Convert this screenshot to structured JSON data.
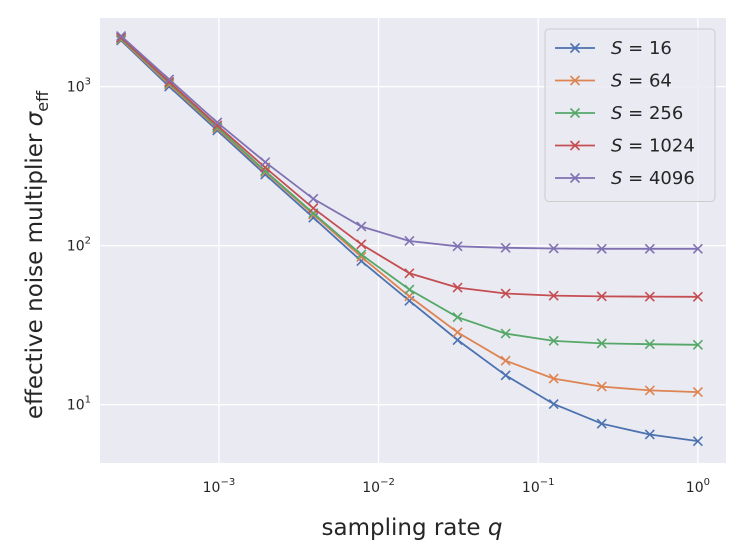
{
  "chart_data": {
    "type": "line",
    "x_scale": "log",
    "y_scale": "log",
    "xlim": [
      0.00018,
      1.5
    ],
    "ylim": [
      4.3,
      2700
    ],
    "xlabel": "sampling rate",
    "xlabel_var": "q",
    "ylabel": "effective noise multiplier",
    "ylabel_var": "σ",
    "ylabel_sub": "eff",
    "grid": true,
    "legend_position": "top-right",
    "x": [
      0.000244,
      0.000488,
      0.000977,
      0.00195,
      0.0039,
      0.0078,
      0.0156,
      0.03125,
      0.0625,
      0.125,
      0.25,
      0.5,
      1.0
    ],
    "x_ticks": [
      {
        "value": 0.001,
        "base": "10",
        "exp": "−3"
      },
      {
        "value": 0.01,
        "base": "10",
        "exp": "−2"
      },
      {
        "value": 0.1,
        "base": "10",
        "exp": "−1"
      },
      {
        "value": 1,
        "base": "10",
        "exp": "0"
      }
    ],
    "y_ticks": [
      {
        "value": 10,
        "base": "10",
        "exp": "1"
      },
      {
        "value": 100,
        "base": "10",
        "exp": "2"
      },
      {
        "value": 1000,
        "base": "10",
        "exp": "3"
      }
    ],
    "series": [
      {
        "name": "S = 16",
        "var": "S",
        "eq": "= 16",
        "color": "#4c72b0",
        "values": [
          1950,
          1000,
          530,
          280,
          150,
          80,
          45,
          25.5,
          15.3,
          10.1,
          7.6,
          6.5,
          5.9
        ]
      },
      {
        "name": "S = 64",
        "var": "S",
        "eq": "= 64",
        "color": "#dd8452",
        "values": [
          1980,
          1030,
          545,
          290,
          157,
          85,
          48,
          28.5,
          18.9,
          14.6,
          13.0,
          12.3,
          12.0
        ]
      },
      {
        "name": "S = 256",
        "var": "S",
        "eq": "= 256",
        "color": "#55a868",
        "values": [
          2000,
          1050,
          555,
          295,
          160,
          88,
          53,
          35.5,
          28.0,
          25.2,
          24.3,
          24.0,
          23.8
        ]
      },
      {
        "name": "S = 1024",
        "var": "S",
        "eq": "= 1024",
        "color": "#c44e52",
        "values": [
          2030,
          1070,
          570,
          310,
          172,
          102,
          67,
          54.5,
          50.0,
          48.5,
          48.0,
          47.8,
          47.7
        ]
      },
      {
        "name": "S = 4096",
        "var": "S",
        "eq": "= 4096",
        "color": "#8172b3",
        "values": [
          2080,
          1110,
          595,
          335,
          197,
          132,
          107,
          99,
          97,
          96,
          95.5,
          95.5,
          95.5
        ]
      }
    ]
  }
}
